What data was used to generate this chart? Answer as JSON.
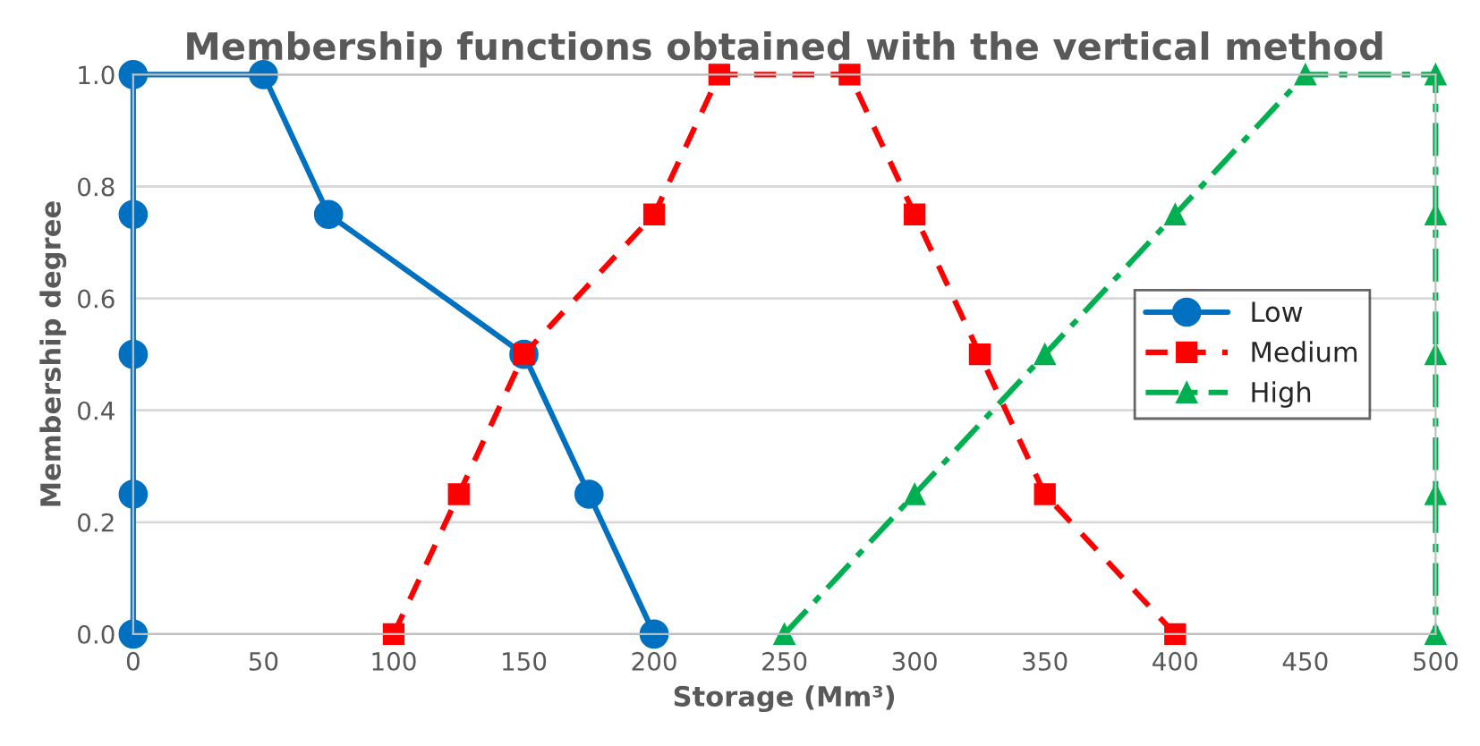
{
  "chart_data": {
    "type": "line",
    "title": "Membership functions obtained with the vertical method",
    "xlabel": "Storage (Mm³)",
    "ylabel": "Membership degree",
    "series": [
      {
        "name": "Low",
        "color": "#0070c0",
        "marker": "circle",
        "line_style": "solid",
        "x": [
          0,
          0,
          0,
          0,
          0,
          50,
          75,
          150,
          175,
          200
        ],
        "values": [
          0,
          0.25,
          0.5,
          0.75,
          1,
          1,
          0.75,
          0.5,
          0.25,
          0
        ]
      },
      {
        "name": "Medium",
        "color": "#ff0000",
        "marker": "square",
        "line_style": "dashed",
        "x": [
          100,
          125,
          150,
          200,
          225,
          275,
          300,
          325,
          350,
          400
        ],
        "values": [
          0,
          0.25,
          0.5,
          0.75,
          1,
          1,
          0.75,
          0.5,
          0.25,
          0
        ]
      },
      {
        "name": "High",
        "color": "#00b050",
        "marker": "triangle",
        "line_style": "dashdot",
        "x": [
          250,
          300,
          350,
          400,
          450,
          500,
          500,
          500,
          500,
          500
        ],
        "values": [
          0,
          0.25,
          0.5,
          0.75,
          1,
          1,
          0.75,
          0.5,
          0.25,
          0
        ]
      }
    ],
    "xlim": [
      0,
      500
    ],
    "xticks": [
      0,
      50,
      100,
      150,
      200,
      250,
      300,
      350,
      400,
      450,
      500
    ],
    "ylim": [
      0,
      1
    ],
    "yticks": [
      {
        "value": 0,
        "label": "0.0"
      },
      {
        "value": 0.2,
        "label": "0.2"
      },
      {
        "value": 0.4,
        "label": "0.4"
      },
      {
        "value": 0.6,
        "label": "0.6"
      },
      {
        "value": 0.8,
        "label": "0.8"
      },
      {
        "value": 1,
        "label": "1.0"
      }
    ],
    "grid": "y",
    "legend": "right"
  }
}
